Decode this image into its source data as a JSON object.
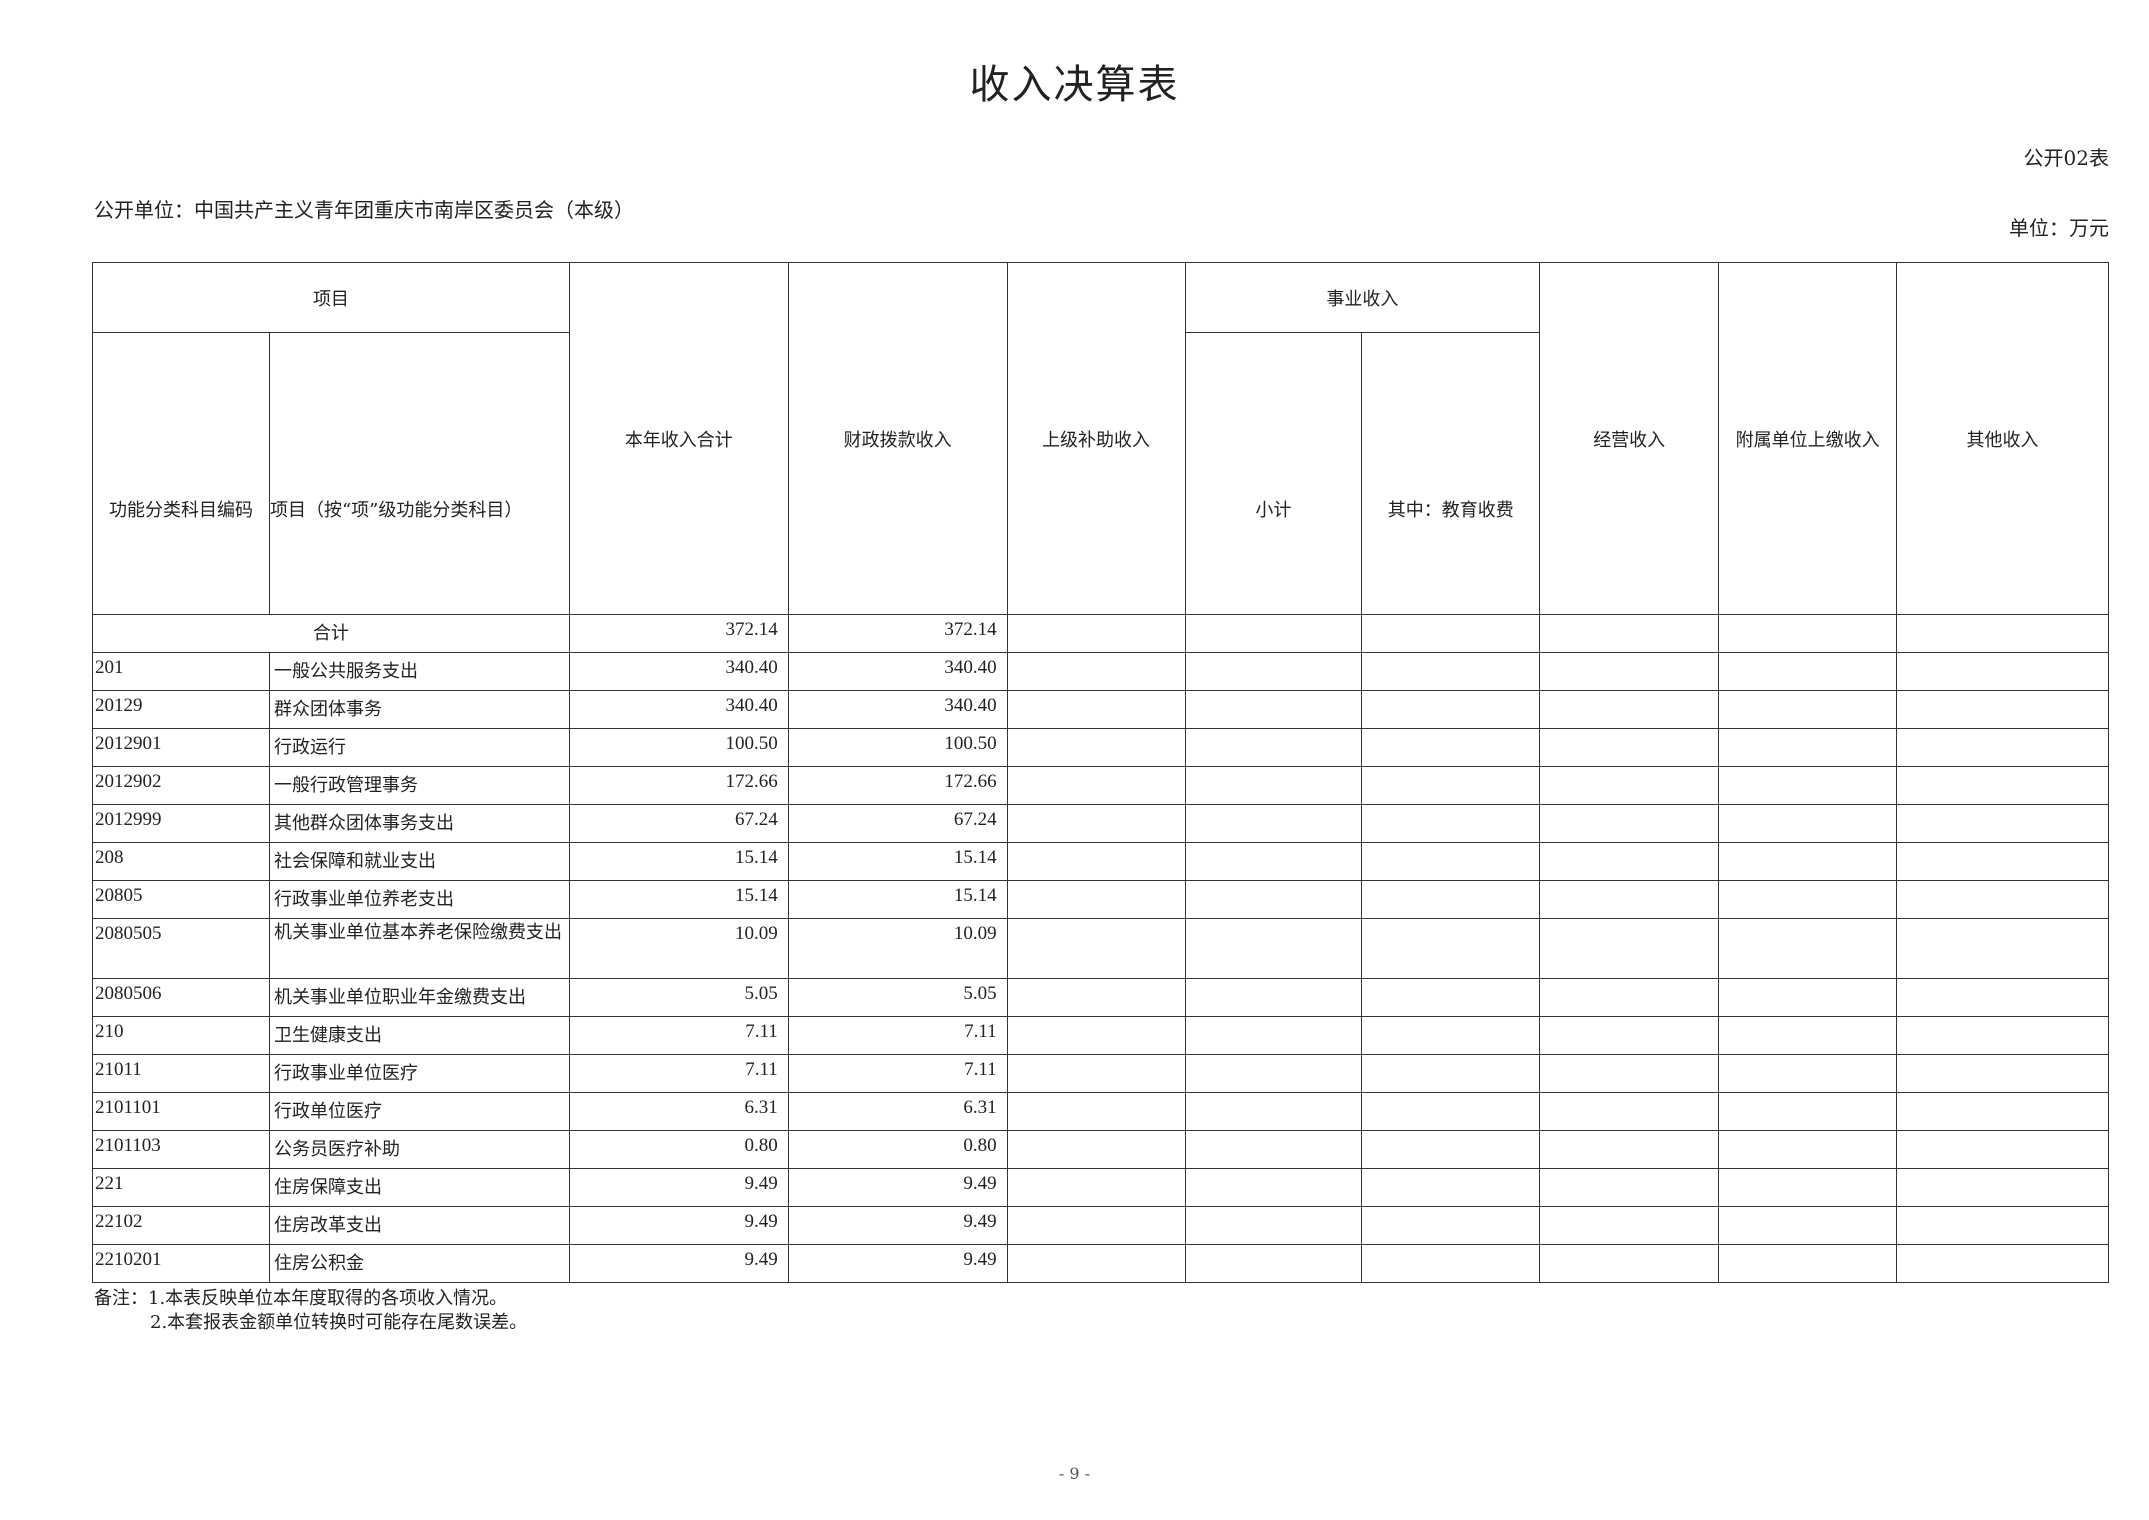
{
  "title": "收入决算表",
  "form_no": "公开02表",
  "unit_name": "公开单位：中国共产主义青年团重庆市南岸区委员会（本级）",
  "unit": "单位：万元",
  "headers": {
    "project": "项目",
    "code": "功能分类科目编码",
    "name": "项目（按“项”级功能分类科目）",
    "total": "本年收入合计",
    "fiscal": "财政拨款收入",
    "superior": "上级补助收入",
    "business": "事业收入",
    "subtotal": "小计",
    "education": "其中：教育收费",
    "operating": "经营收入",
    "affiliated": "附属单位上缴收入",
    "other": "其他收入"
  },
  "total_row": {
    "label": "合计",
    "total": "372.14",
    "fiscal": "372.14"
  },
  "rows": [
    {
      "code": "201",
      "name": "一般公共服务支出",
      "total": "340.40",
      "fiscal": "340.40"
    },
    {
      "code": "20129",
      "name": "群众团体事务",
      "total": "340.40",
      "fiscal": "340.40"
    },
    {
      "code": "2012901",
      "name": "行政运行",
      "total": "100.50",
      "fiscal": "100.50"
    },
    {
      "code": "2012902",
      "name": "一般行政管理事务",
      "total": "172.66",
      "fiscal": "172.66"
    },
    {
      "code": "2012999",
      "name": "其他群众团体事务支出",
      "total": "67.24",
      "fiscal": "67.24"
    },
    {
      "code": "208",
      "name": "社会保障和就业支出",
      "total": "15.14",
      "fiscal": "15.14"
    },
    {
      "code": "20805",
      "name": "行政事业单位养老支出",
      "total": "15.14",
      "fiscal": "15.14"
    },
    {
      "code": "2080505",
      "name": "机关事业单位基本养老保险缴费支出",
      "total": "10.09",
      "fiscal": "10.09"
    },
    {
      "code": "2080506",
      "name": "机关事业单位职业年金缴费支出",
      "total": "5.05",
      "fiscal": "5.05"
    },
    {
      "code": "210",
      "name": "卫生健康支出",
      "total": "7.11",
      "fiscal": "7.11"
    },
    {
      "code": "21011",
      "name": "行政事业单位医疗",
      "total": "7.11",
      "fiscal": "7.11"
    },
    {
      "code": "2101101",
      "name": "行政单位医疗",
      "total": "6.31",
      "fiscal": "6.31"
    },
    {
      "code": "2101103",
      "name": "公务员医疗补助",
      "total": "0.80",
      "fiscal": "0.80"
    },
    {
      "code": "221",
      "name": "住房保障支出",
      "total": "9.49",
      "fiscal": "9.49"
    },
    {
      "code": "22102",
      "name": "住房改革支出",
      "total": "9.49",
      "fiscal": "9.49"
    },
    {
      "code": "2210201",
      "name": "住房公积金",
      "total": "9.49",
      "fiscal": "9.49"
    }
  ],
  "notes": [
    "备注：1.本表反映单位本年度取得的各项收入情况。",
    "2.本套报表金额单位转换时可能存在尾数误差。"
  ],
  "page_number": "- 9 -"
}
